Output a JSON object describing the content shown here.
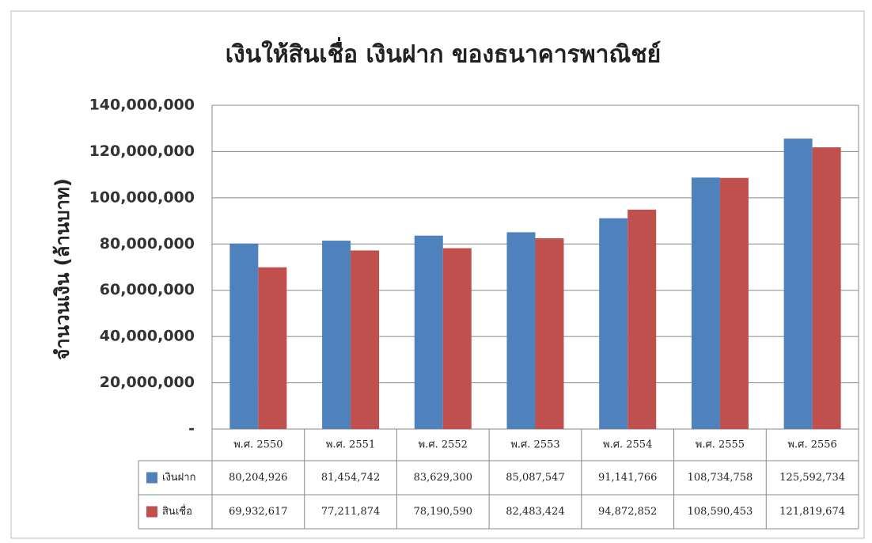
{
  "chart_data": {
    "type": "bar",
    "title": "เงินให้สินเชื่อ เงินฝาก ของธนาคารพาณิชย์",
    "y_label": "จำนวนเงิน (ล้านบาท)",
    "categories": [
      "พ.ศ. 2550",
      "พ.ศ. 2551",
      "พ.ศ. 2552",
      "พ.ศ. 2553",
      "พ.ศ. 2554",
      "พ.ศ. 2555",
      "พ.ศ. 2556"
    ],
    "series": [
      {
        "name": "เงินฝาก",
        "color": "#4f81bd",
        "values": [
          80204926,
          81454742,
          83629300,
          85087547,
          91141766,
          108734758,
          125592734
        ],
        "value_labels": [
          "80,204,926",
          "81,454,742",
          "83,629,300",
          "85,087,547",
          "91,141,766",
          "108,734,758",
          "125,592,734"
        ]
      },
      {
        "name": "สินเชื่อ",
        "color": "#c0504d",
        "values": [
          69932617,
          77211874,
          78190590,
          82483424,
          94872852,
          108590453,
          121819674
        ],
        "value_labels": [
          "69,932,617",
          "77,211,874",
          "78,190,590",
          "82,483,424",
          "94,872,852",
          "108,590,453",
          "121,819,674"
        ]
      }
    ],
    "ylim": [
      0,
      140000000
    ],
    "yticks": [
      {
        "value": 0,
        "label": "-"
      },
      {
        "value": 20000000,
        "label": "20,000,000"
      },
      {
        "value": 40000000,
        "label": "40,000,000"
      },
      {
        "value": 60000000,
        "label": "60,000,000"
      },
      {
        "value": 80000000,
        "label": "80,000,000"
      },
      {
        "value": 100000000,
        "label": "100,000,000"
      },
      {
        "value": 120000000,
        "label": "120,000,000"
      },
      {
        "value": 140000000,
        "label": "140,000,000"
      }
    ],
    "grid": true
  }
}
